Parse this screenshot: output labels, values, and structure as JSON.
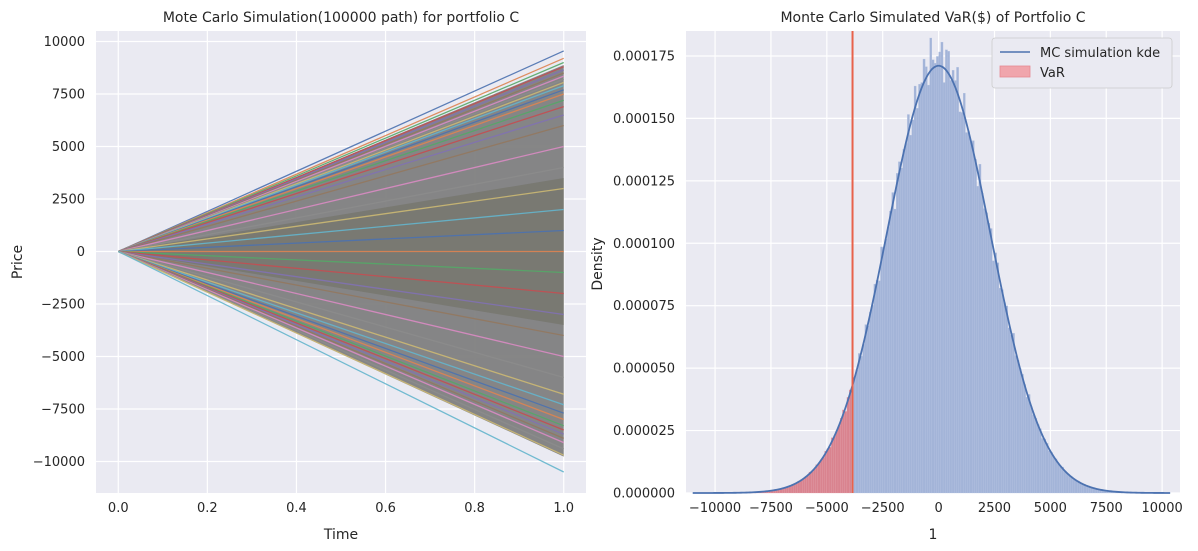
{
  "chart_data": [
    {
      "type": "line",
      "title": "Mote Carlo Simulation(100000 path) for portfolio C",
      "xlabel": "Time",
      "ylabel": "Price",
      "xlim": [
        -0.05,
        1.05
      ],
      "ylim": [
        -11500,
        10500
      ],
      "xticks": [
        0.0,
        0.2,
        0.4,
        0.6,
        0.8,
        1.0
      ],
      "xtick_labels": [
        "0.0",
        "0.2",
        "0.4",
        "0.6",
        "0.8",
        "1.0"
      ],
      "yticks": [
        -10000,
        -7500,
        -5000,
        -2500,
        0,
        2500,
        5000,
        7500,
        10000
      ],
      "ytick_labels": [
        "−10000",
        "−7500",
        "−5000",
        "−2500",
        "0",
        "2500",
        "5000",
        "7500",
        "10000"
      ],
      "start": [
        0,
        0
      ],
      "path_end_values": [
        9550,
        9200,
        9000,
        8800,
        8650,
        8500,
        8350,
        8200,
        8050,
        7900,
        7700,
        7500,
        7200,
        6900,
        6500,
        6000,
        5000,
        4000,
        3000,
        2000,
        1000,
        0,
        -1000,
        -2000,
        -3000,
        -4000,
        -5000,
        -6000,
        -6800,
        -7300,
        -7700,
        -8000,
        -8300,
        -8500,
        -8700,
        -8900,
        -9100,
        -9400,
        -9700,
        -10500
      ],
      "grid": true
    },
    {
      "type": "histogram",
      "title": "Monte Carlo Simulated VaR($) of Portfolio C",
      "xlabel": "1",
      "ylabel": "Density",
      "xlim": [
        -11300,
        10800
      ],
      "ylim": [
        0,
        0.000185
      ],
      "xticks": [
        -10000,
        -7500,
        -5000,
        -2500,
        0,
        2500,
        5000,
        7500,
        10000
      ],
      "xtick_labels": [
        "−10000",
        "−7500",
        "−5000",
        "−2500",
        "0",
        "2500",
        "5000",
        "7500",
        "10000"
      ],
      "yticks": [
        0,
        2.5e-05,
        5e-05,
        7.5e-05,
        0.0001,
        0.000125,
        0.00015,
        0.000175
      ],
      "ytick_labels": [
        "0.000000",
        "0.000025",
        "0.000050",
        "0.000075",
        "0.000100",
        "0.000125",
        "0.000150",
        "0.000175"
      ],
      "distribution_mean": 0,
      "distribution_sd": 2320,
      "bin_range": [
        -10500,
        9500
      ],
      "bin_count": 200,
      "var_threshold": -3850,
      "legend": {
        "placement": "top-right",
        "entries": [
          "MC simulation kde",
          "VaR"
        ]
      },
      "grid": true
    }
  ],
  "colors": {
    "axes_background": "#eaeaf2",
    "grid": "#ffffff",
    "hist_fill": "#a3b4d8",
    "hist_edge": "#b6c4e2",
    "var_fill": "#d9838f",
    "var_line": "#e8624b",
    "kde": "#4c72b0",
    "path_palette": [
      "#4c72b0",
      "#dd8452",
      "#55a868",
      "#c44e52",
      "#8172b3",
      "#937860",
      "#da8bc3",
      "#8c8c8c",
      "#ccb974",
      "#64b5cd"
    ],
    "fan_fill": "#7f7f7f"
  }
}
